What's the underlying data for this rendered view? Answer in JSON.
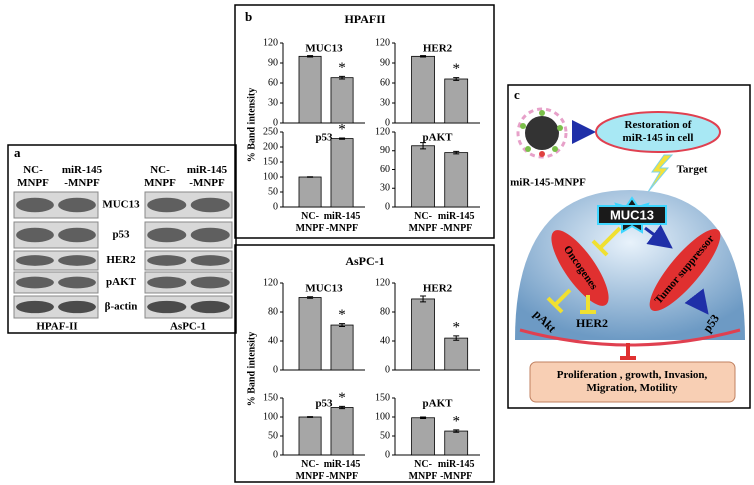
{
  "panel_a": {
    "label": "a",
    "columns": [
      "NC-\nMNPF",
      "miR-145\n-MNPF",
      "NC-\nMNPF",
      "miR-145\n-MNPF"
    ],
    "rows": [
      "MUC13",
      "p53",
      "HER2",
      "pAKT",
      "β-actin"
    ],
    "cell_lines": [
      "HPAF-II",
      "AsPC-1"
    ]
  },
  "panel_b": {
    "label": "b",
    "groups": [
      {
        "title": "HPAFII",
        "y_label": "% Band intensity",
        "categories": [
          "NC-\nMNPF",
          "miR-145\n-MNPF"
        ],
        "charts": [
          {
            "type": "bar",
            "title": "MUC13",
            "values": [
              100,
              68
            ],
            "errors": [
              1,
              2
            ],
            "significance": [
              null,
              "*"
            ],
            "ylim": [
              0,
              120
            ],
            "yticks": [
              0,
              30,
              60,
              90,
              120
            ]
          },
          {
            "type": "bar",
            "title": "HER2",
            "values": [
              100,
              66
            ],
            "errors": [
              1,
              2
            ],
            "significance": [
              null,
              "*"
            ],
            "ylim": [
              0,
              120
            ],
            "yticks": [
              0,
              30,
              60,
              90,
              120
            ]
          },
          {
            "type": "bar",
            "title": "p53",
            "values": [
              100,
              228
            ],
            "errors": [
              1,
              2
            ],
            "significance": [
              null,
              "*"
            ],
            "ylim": [
              0,
              250
            ],
            "yticks": [
              0,
              50,
              100,
              150,
              200,
              250
            ]
          },
          {
            "type": "bar",
            "title": "pAKT",
            "values": [
              98,
              87
            ],
            "errors": [
              5,
              2
            ],
            "significance": [
              null,
              null
            ],
            "ylim": [
              0,
              120
            ],
            "yticks": [
              0,
              30,
              60,
              90,
              120
            ]
          }
        ]
      },
      {
        "title": "AsPC-1",
        "y_label": "% Band intensity",
        "categories": [
          "NC-\nMNPF",
          "miR-145\n-MNPF"
        ],
        "charts": [
          {
            "type": "bar",
            "title": "MUC13",
            "values": [
              100,
              62
            ],
            "errors": [
              1,
              2
            ],
            "significance": [
              null,
              "*"
            ],
            "ylim": [
              0,
              120
            ],
            "yticks": [
              0,
              40,
              80,
              120
            ]
          },
          {
            "type": "bar",
            "title": "HER2",
            "values": [
              98,
              44
            ],
            "errors": [
              4,
              3
            ],
            "significance": [
              null,
              "*"
            ],
            "ylim": [
              0,
              120
            ],
            "yticks": [
              0,
              40,
              80,
              120
            ]
          },
          {
            "type": "bar",
            "title": "p53",
            "values": [
              100,
              125
            ],
            "errors": [
              1,
              3
            ],
            "significance": [
              null,
              "*"
            ],
            "ylim": [
              0,
              150
            ],
            "yticks": [
              0,
              50,
              100,
              150
            ]
          },
          {
            "type": "bar",
            "title": "pAKT",
            "values": [
              98,
              63
            ],
            "errors": [
              2,
              3
            ],
            "significance": [
              null,
              "*"
            ],
            "ylim": [
              0,
              150
            ],
            "yticks": [
              0,
              50,
              100,
              150
            ]
          }
        ]
      }
    ]
  },
  "panel_c": {
    "label": "c",
    "nanoparticle": "miR-145-MNPF",
    "restoration": "Restoration of\nmiR-145 in cell",
    "target": "Target",
    "hub": "MUC13",
    "oncogenes": "Oncogenes",
    "tumor_suppressor": "Tumor suppressor",
    "pakt": "pAkt",
    "her2": "HER2",
    "p53": "p53",
    "outcome": "Proliferation , growth, Invasion,\nMigration, Motility"
  }
}
